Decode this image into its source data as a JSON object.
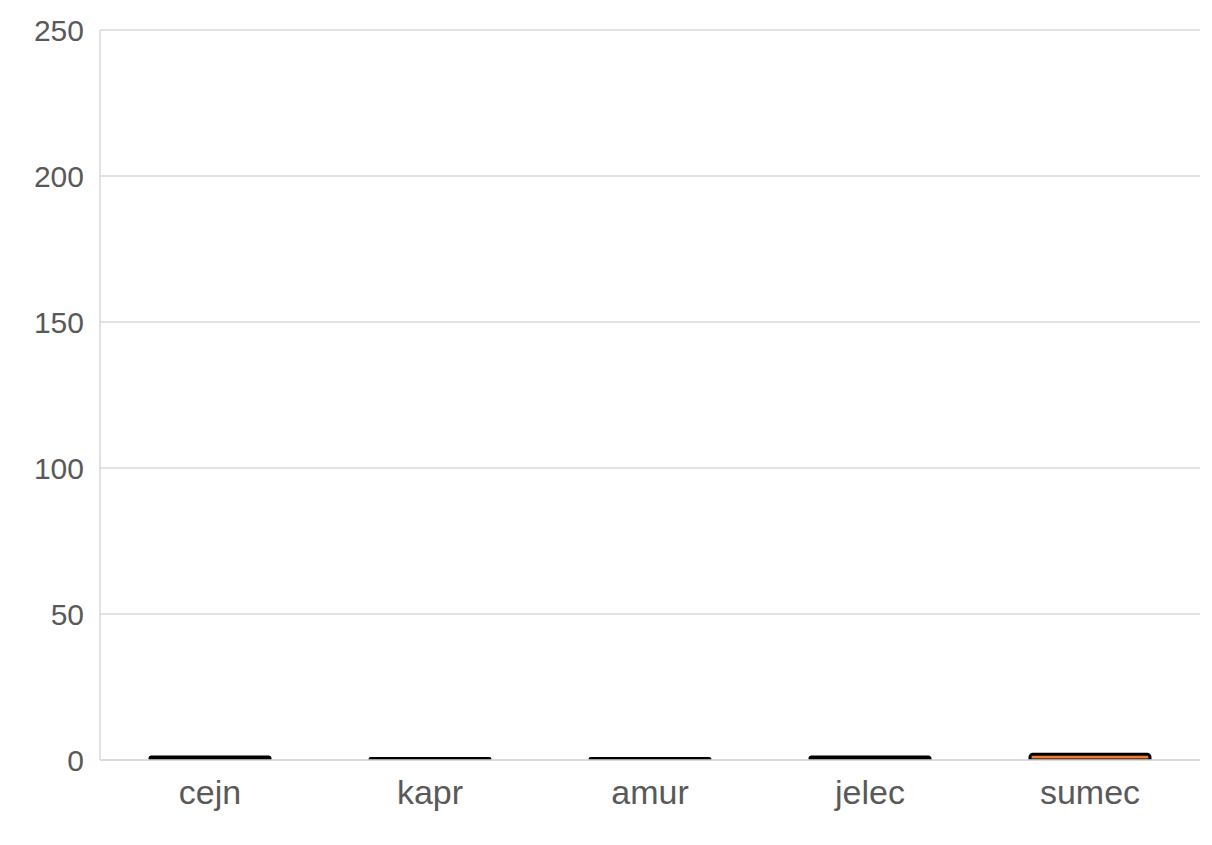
{
  "chart_data": {
    "type": "bar",
    "categories": [
      "cejn",
      "kapr",
      "amur",
      "jelec",
      "sumec"
    ],
    "values": [
      1,
      0.5,
      0.5,
      1,
      2
    ],
    "colors": [
      "#000000",
      "#000000",
      "#000000",
      "#000000",
      "#ed7d31"
    ],
    "ylim": [
      0,
      250
    ],
    "yticks": [
      0,
      50,
      100,
      150,
      200,
      250
    ],
    "grid": true
  }
}
